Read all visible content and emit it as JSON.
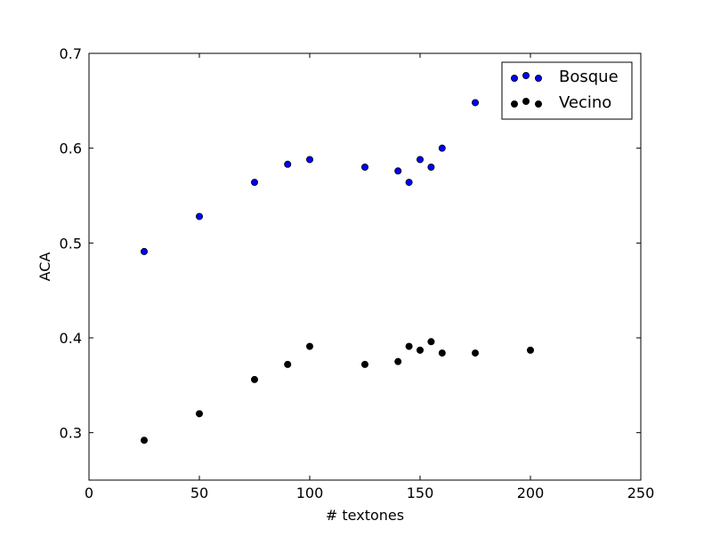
{
  "chart_data": {
    "type": "scatter",
    "title": "",
    "xlabel": "# textones",
    "ylabel": "ACA",
    "xlim": [
      0,
      250
    ],
    "ylim": [
      0.25,
      0.7
    ],
    "xticks": [
      0,
      50,
      100,
      150,
      200,
      250
    ],
    "yticks": [
      0.3,
      0.4,
      0.5,
      0.6,
      0.7
    ],
    "xtick_labels": [
      "0",
      "50",
      "100",
      "150",
      "200",
      "250"
    ],
    "ytick_labels": [
      "0.3",
      "0.4",
      "0.5",
      "0.6",
      "0.7"
    ],
    "grid": false,
    "legend_position": "top-right",
    "series": [
      {
        "name": "Bosque",
        "color": "#0000ff",
        "points": [
          [
            25,
            0.491
          ],
          [
            50,
            0.528
          ],
          [
            75,
            0.564
          ],
          [
            90,
            0.583
          ],
          [
            100,
            0.588
          ],
          [
            125,
            0.58
          ],
          [
            140,
            0.576
          ],
          [
            145,
            0.564
          ],
          [
            150,
            0.588
          ],
          [
            155,
            0.58
          ],
          [
            160,
            0.6
          ],
          [
            175,
            0.648
          ]
        ]
      },
      {
        "name": "Vecino",
        "color": "#000000",
        "points": [
          [
            25,
            0.292
          ],
          [
            50,
            0.32
          ],
          [
            75,
            0.356
          ],
          [
            90,
            0.372
          ],
          [
            100,
            0.391
          ],
          [
            125,
            0.372
          ],
          [
            140,
            0.375
          ],
          [
            145,
            0.391
          ],
          [
            150,
            0.387
          ],
          [
            155,
            0.396
          ],
          [
            160,
            0.384
          ],
          [
            175,
            0.384
          ],
          [
            200,
            0.387
          ]
        ]
      }
    ]
  }
}
